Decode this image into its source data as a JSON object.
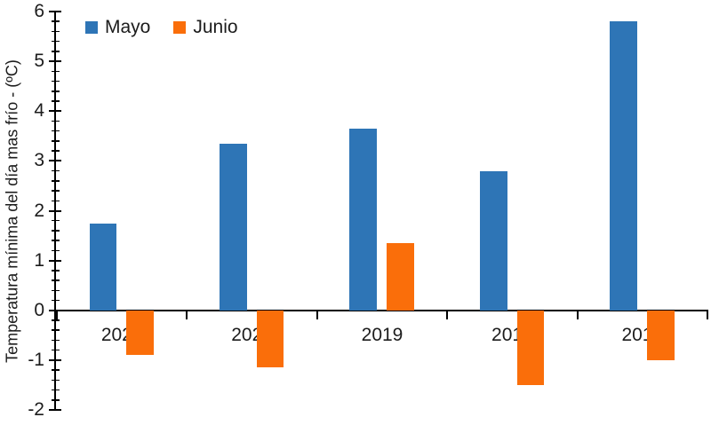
{
  "chart": {
    "background": "#ffffff",
    "axis_color": "#000000",
    "text_color": "#1c1c1c"
  },
  "chart_data": {
    "type": "bar",
    "title": "",
    "categories": [
      "2021",
      "2020",
      "2019",
      "2018",
      "2017"
    ],
    "series": [
      {
        "name": "Mayo",
        "color": "#2E75B6",
        "values": [
          1.75,
          3.35,
          3.65,
          2.8,
          5.8
        ]
      },
      {
        "name": "Junio",
        "color": "#FA6E0A",
        "values": [
          -0.9,
          -1.15,
          1.35,
          -1.5,
          -1.0
        ]
      }
    ],
    "xlabel": "",
    "ylabel": "Temperatura mínima del día mas frío - (ºC)",
    "ylim": [
      -2,
      6
    ],
    "y_major_step": 1,
    "y_minor_step": 0.2,
    "y_tick_labels": [
      "6",
      "5",
      "4",
      "3",
      "2",
      "1",
      "0",
      "-1",
      "-2"
    ],
    "grid": false,
    "legend_position": "top-left"
  }
}
